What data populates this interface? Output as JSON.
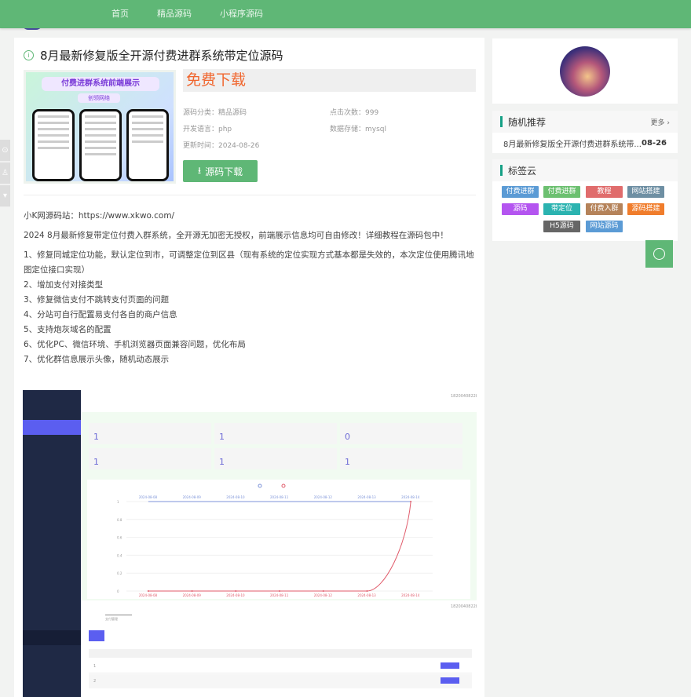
{
  "nav": {
    "items": [
      "首页",
      "精品源码",
      "小程序源码"
    ]
  },
  "article": {
    "title": "8月最新修复版全开源付费进群系统带定位源码",
    "thumbnail": {
      "heading": "付费进群系统前端展示",
      "sub": "创领网络"
    },
    "free_label": "免费下载",
    "meta": {
      "category": "源码分类：精品源码",
      "clicks": "点击次数：999",
      "language": "开发语言：php",
      "storage": "数据存储：mysql",
      "updated": "更新时间：2024-08-26"
    },
    "download_label": "源码下载",
    "paragraphs": [
      "小K网源码站：https://www.xkwo.com/",
      "2024 8月最新修复带定位付费入群系统，全开源无加密无授权，前端展示信息均可自由修改！详细教程在源码包中！"
    ],
    "list": [
      "1、修复同城定位功能，默认定位到市，可调整定位到区县（现有系统的定位实现方式基本都是失效的，本次定位使用腾讯地图定位接口实现）",
      "2、增加支付对接类型",
      "3、修复微信支付不跳转支付页面的问题",
      "4、分站可自行配置易支付各自的商户信息",
      "5、支持炮灰域名的配置",
      "6、优化PC、微信环境、手机浏览器页面兼容问题，优化布局",
      "7、优化群信息展示头像，随机动态展示"
    ],
    "screenshot": {
      "phone_number": "18200408228",
      "stats": [
        "1",
        "1",
        "0",
        "1",
        "1",
        "1"
      ],
      "dates": [
        "2024-08-08",
        "2024-08-09",
        "2024-08-10",
        "2024-08-11",
        "2024-08-12",
        "2024-08-13",
        "2024-08-14"
      ],
      "y_ticks": [
        "0",
        "0.2",
        "0.4",
        "0.6",
        "0.8",
        "1"
      ],
      "series_blue": [
        1,
        1,
        1,
        1,
        1,
        1,
        1
      ],
      "series_red": [
        0,
        0,
        0,
        0,
        0,
        0,
        1
      ],
      "table_rows": [
        "1",
        "2"
      ],
      "colors": {
        "sidebar": "#1f2945",
        "accent": "#5b5ef0",
        "red": "#e05a6a",
        "blue": "#7c93d8"
      }
    }
  },
  "sidebar": {
    "random": {
      "title": "随机推荐",
      "more": "更多",
      "items": [
        {
          "title": "8月最新修复版全开源付费进群系统带...",
          "date": "08-26"
        }
      ]
    },
    "tags": {
      "title": "标签云",
      "items": [
        {
          "label": "付费进群",
          "color": "#5b9bd5"
        },
        {
          "label": "付费进群",
          "color": "#6cc070"
        },
        {
          "label": "教程",
          "color": "#e06c6c"
        },
        {
          "label": "网站搭建",
          "color": "#6e8fa3"
        },
        {
          "label": "源码",
          "color": "#b455f0"
        },
        {
          "label": "带定位",
          "color": "#2bb3b0"
        },
        {
          "label": "付费入群",
          "color": "#b5835a"
        },
        {
          "label": "源码搭建",
          "color": "#f07d2c"
        },
        {
          "label": "H5源码",
          "color": "#666666"
        },
        {
          "label": "网站源码",
          "color": "#5b9bd5"
        }
      ]
    }
  },
  "colors": {
    "brand": "#5fb776",
    "free": "#f0662e"
  }
}
